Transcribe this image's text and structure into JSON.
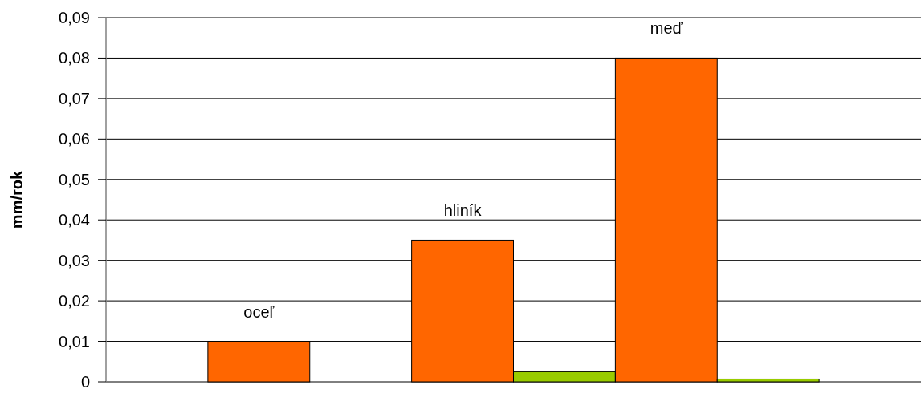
{
  "chart_data": {
    "type": "bar",
    "ylabel": "mm/rok",
    "categories": [
      null
    ],
    "series": [
      {
        "name": "oceľ",
        "color": "#ff6600",
        "values": [
          0.01
        ]
      },
      {
        "color": "#99cc00",
        "values": [
          0
        ]
      },
      {
        "name": "hliník",
        "color": "#ff6600",
        "values": [
          0.035
        ]
      },
      {
        "color": "#99cc00",
        "values": [
          0.0025
        ]
      },
      {
        "name": "meď",
        "color": "#ff6600",
        "values": [
          0.08
        ]
      },
      {
        "color": "#99cc00",
        "values": [
          0.0007
        ]
      }
    ],
    "ylim": [
      0,
      0.09
    ],
    "yticks": [
      {
        "value": 0,
        "label": "0"
      },
      {
        "value": 0.01,
        "label": "0,01"
      },
      {
        "value": 0.02,
        "label": "0,02"
      },
      {
        "value": 0.03,
        "label": "0,03"
      },
      {
        "value": 0.04,
        "label": "0,04"
      },
      {
        "value": 0.05,
        "label": "0,05"
      },
      {
        "value": 0.06,
        "label": "0,06"
      },
      {
        "value": 0.07,
        "label": "0,07"
      },
      {
        "value": 0.08,
        "label": "0,08"
      },
      {
        "value": 0.09,
        "label": "0,09"
      }
    ],
    "grid": "y"
  }
}
